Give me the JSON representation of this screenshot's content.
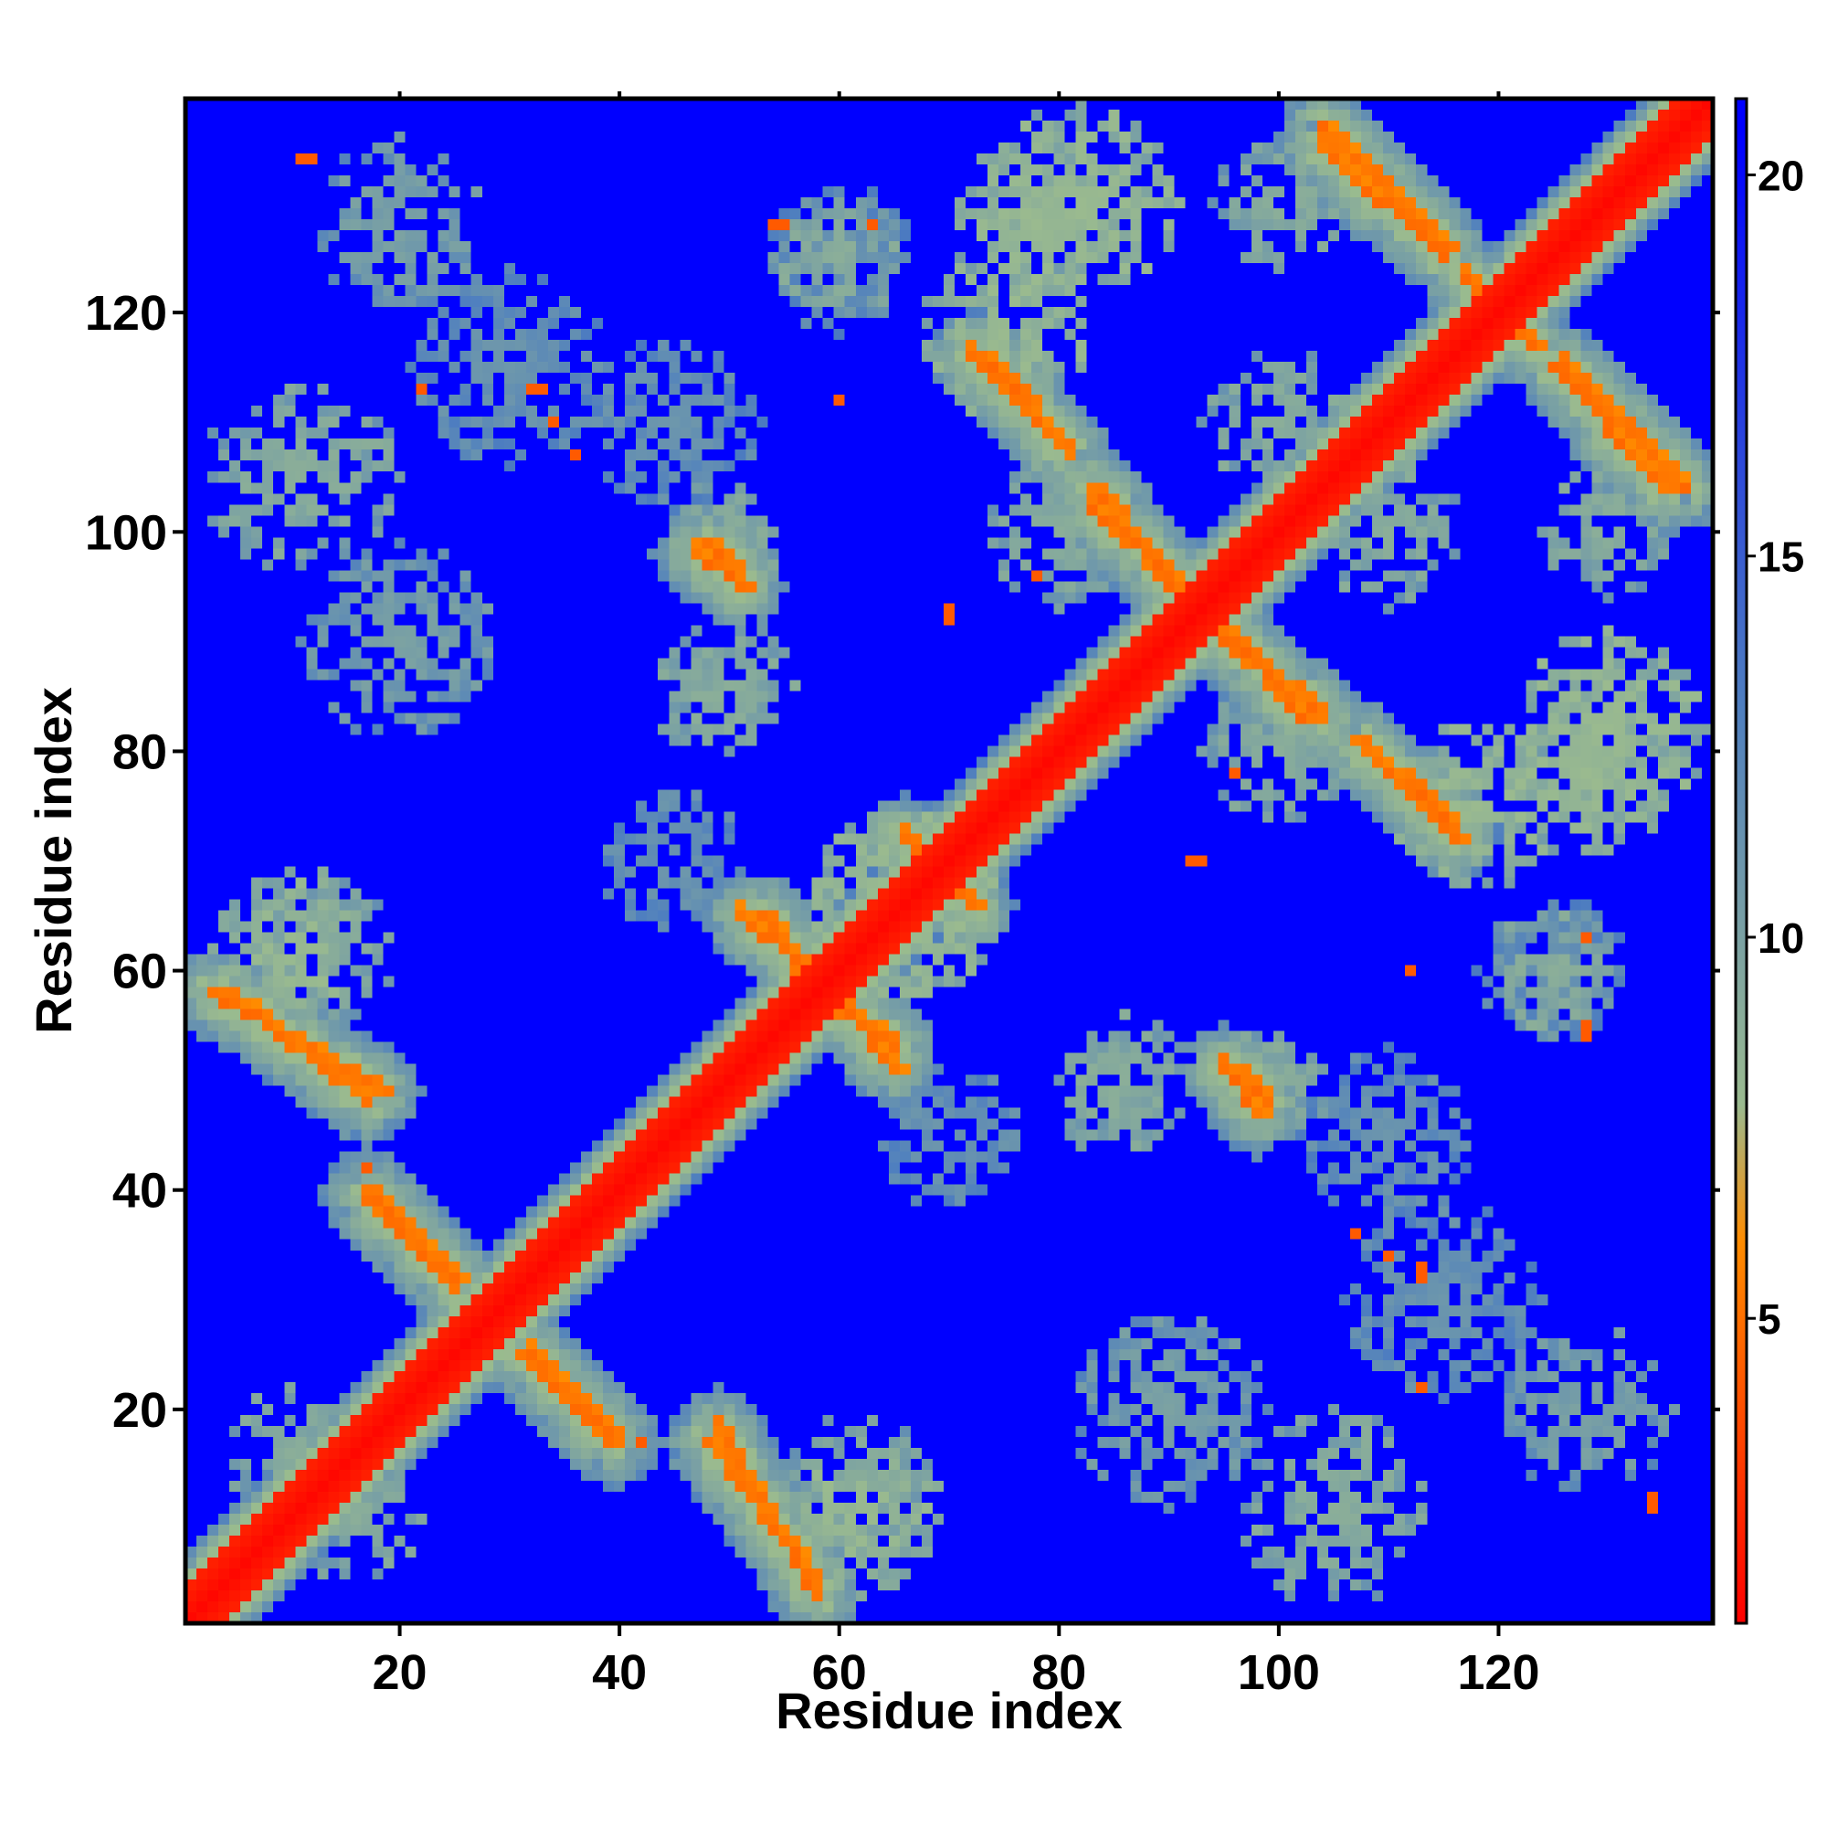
{
  "chart_data": {
    "type": "heatmap",
    "xlabel": "Residue index",
    "ylabel": "Residue index",
    "xlim": [
      1,
      139
    ],
    "ylim": [
      1,
      139
    ],
    "x_ticks": [
      20,
      40,
      60,
      80,
      100,
      120
    ],
    "y_ticks": [
      20,
      40,
      60,
      80,
      100,
      120
    ],
    "x_tick_labels": [
      "20",
      "40",
      "60",
      "80",
      "100",
      "120"
    ],
    "y_tick_labels": [
      "20",
      "40",
      "60",
      "80",
      "100",
      "120"
    ],
    "colorbar": {
      "range": [
        1,
        21
      ],
      "ticks": [
        5,
        10,
        15,
        20
      ],
      "tick_labels": [
        "5",
        "10",
        "15",
        "20"
      ],
      "colors": [
        "#ff0000",
        "#ff8c00",
        "#9aba8f",
        "#4f7fbf",
        "#0000ff"
      ]
    },
    "n_residues": 139,
    "background_value": 21,
    "diagonal_band": {
      "width": 3,
      "value": 1.5
    },
    "contact_bands": [
      {
        "from": [
          3,
          58
        ],
        "to": [
          18,
          49
        ],
        "value": 6.5
      },
      {
        "from": [
          17,
          40
        ],
        "to": [
          25,
          32
        ],
        "value": 6.5
      },
      {
        "from": [
          31,
          25
        ],
        "to": [
          39,
          17
        ],
        "value": 6.5
      },
      {
        "from": [
          48,
          17
        ],
        "to": [
          57,
          5
        ],
        "value": 6.5
      },
      {
        "from": [
          53,
          65
        ],
        "to": [
          57,
          59
        ],
        "value": 6.5
      },
      {
        "from": [
          60,
          57
        ],
        "to": [
          65,
          51
        ],
        "value": 6.5
      },
      {
        "from": [
          73,
          116
        ],
        "to": [
          80,
          108
        ],
        "value": 6.5
      },
      {
        "from": [
          83,
          104
        ],
        "to": [
          90,
          95
        ],
        "value": 6.5
      },
      {
        "from": [
          95,
          91
        ],
        "to": [
          102,
          83
        ],
        "value": 6.5
      },
      {
        "from": [
          107,
          81
        ],
        "to": [
          116,
          72
        ],
        "value": 6.5
      },
      {
        "from": [
          104,
          137
        ],
        "to": [
          115,
          126
        ],
        "value": 6.5
      },
      {
        "from": [
          125,
          115
        ],
        "to": [
          135,
          104
        ],
        "value": 6.5
      },
      {
        "from": [
          48,
          99
        ],
        "to": [
          51,
          95
        ],
        "value": 6.5
      },
      {
        "from": [
          95,
          51
        ],
        "to": [
          98,
          47
        ],
        "value": 6.5
      },
      {
        "from": [
          118,
          121
        ],
        "to": [
          123,
          117
        ],
        "value": 6.5
      },
      {
        "from": [
          66,
          72
        ],
        "to": [
          72,
          66
        ],
        "value": 6.5
      }
    ],
    "halo_regions": [
      {
        "center": [
          11,
          105
        ],
        "radius": 9,
        "value": 13
      },
      {
        "center": [
          13,
          62
        ],
        "radius": 7,
        "value": 13
      },
      {
        "center": [
          50,
          86
        ],
        "radius": 6,
        "value": 13
      },
      {
        "center": [
          60,
          125
        ],
        "radius": 6,
        "value": 13
      },
      {
        "center": [
          82,
          130
        ],
        "radius": 9,
        "value": 12
      },
      {
        "center": [
          66,
          66
        ],
        "radius": 9,
        "value": 12
      },
      {
        "center": [
          62,
          10
        ],
        "radius": 7,
        "value": 12
      },
      {
        "center": [
          75,
          118
        ],
        "radius": 8,
        "value": 12
      },
      {
        "center": [
          100,
          110
        ],
        "radius": 7,
        "value": 13
      },
      {
        "center": [
          100,
          80
        ],
        "radius": 7,
        "value": 13
      },
      {
        "center": [
          128,
          78
        ],
        "radius": 8,
        "value": 12
      },
      {
        "center": [
          130,
          100
        ],
        "radius": 6,
        "value": 13
      },
      {
        "center": [
          85,
          48
        ],
        "radius": 5,
        "value": 13
      },
      {
        "center": [
          100,
          50
        ],
        "radius": 5,
        "value": 13
      },
      {
        "center": [
          90,
          20
        ],
        "radius": 9,
        "value": 14
      },
      {
        "center": [
          128,
          20
        ],
        "radius": 8,
        "value": 14
      },
      {
        "center": [
          16,
          10
        ],
        "radius": 6,
        "value": 13
      },
      {
        "center": [
          30,
          115
        ],
        "radius": 9,
        "value": 15
      },
      {
        "center": [
          45,
          70
        ],
        "radius": 7,
        "value": 15
      },
      {
        "center": [
          110,
          45
        ],
        "radius": 8,
        "value": 15
      },
      {
        "center": [
          125,
          60
        ],
        "radius": 7,
        "value": 15
      }
    ],
    "isolated_contacts": [
      {
        "x": 11,
        "y": 134,
        "value": 6
      },
      {
        "x": 33,
        "y": 113,
        "value": 6
      },
      {
        "x": 36,
        "y": 107,
        "value": 6
      },
      {
        "x": 60,
        "y": 112,
        "value": 6
      },
      {
        "x": 54,
        "y": 128,
        "value": 6
      },
      {
        "x": 63,
        "y": 128,
        "value": 6
      },
      {
        "x": 70,
        "y": 92,
        "value": 6
      },
      {
        "x": 78,
        "y": 96,
        "value": 6
      },
      {
        "x": 93,
        "y": 70,
        "value": 6
      },
      {
        "x": 110,
        "y": 34,
        "value": 6
      },
      {
        "x": 113,
        "y": 32,
        "value": 6
      },
      {
        "x": 113,
        "y": 22,
        "value": 6
      },
      {
        "x": 128,
        "y": 55,
        "value": 6
      },
      {
        "x": 134,
        "y": 12,
        "value": 6
      },
      {
        "x": 6,
        "y": 9,
        "value": 6
      },
      {
        "x": 42,
        "y": 17,
        "value": 6
      }
    ]
  }
}
